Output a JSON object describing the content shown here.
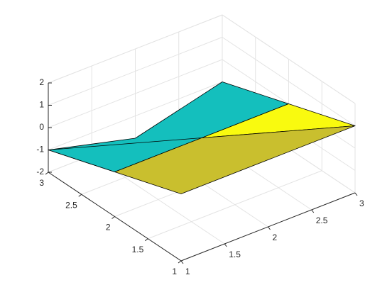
{
  "chart_data": {
    "type": "surface3d",
    "xlim": [
      1,
      3
    ],
    "ylim": [
      1,
      3
    ],
    "zlim": [
      -2,
      2
    ],
    "xticks": [
      1,
      1.5,
      2,
      2.5,
      3
    ],
    "yticks": [
      1,
      1.5,
      2,
      2.5,
      3
    ],
    "zticks": [
      -2,
      -1,
      0,
      1,
      2
    ],
    "grid": true,
    "patches": [
      {
        "color": "#14bfbd",
        "x": [
          1,
          2,
          3,
          3,
          1
        ],
        "y": [
          3,
          3,
          3,
          2,
          2
        ],
        "z": [
          -1,
          -2,
          -1,
          0,
          0
        ]
      },
      {
        "color": "#14bfbd",
        "x": [
          1,
          2,
          1
        ],
        "y": [
          3,
          2,
          2
        ],
        "z": [
          -1,
          0,
          0
        ]
      },
      {
        "color": "#f9fa0f",
        "x": [
          2,
          3,
          3
        ],
        "y": [
          2,
          2,
          1
        ],
        "z": [
          0,
          0,
          1
        ]
      },
      {
        "color": "#c9bf2e",
        "x": [
          1,
          2,
          3,
          1
        ],
        "y": [
          2,
          2,
          1,
          1
        ],
        "z": [
          0,
          0,
          1,
          1
        ]
      }
    ]
  }
}
